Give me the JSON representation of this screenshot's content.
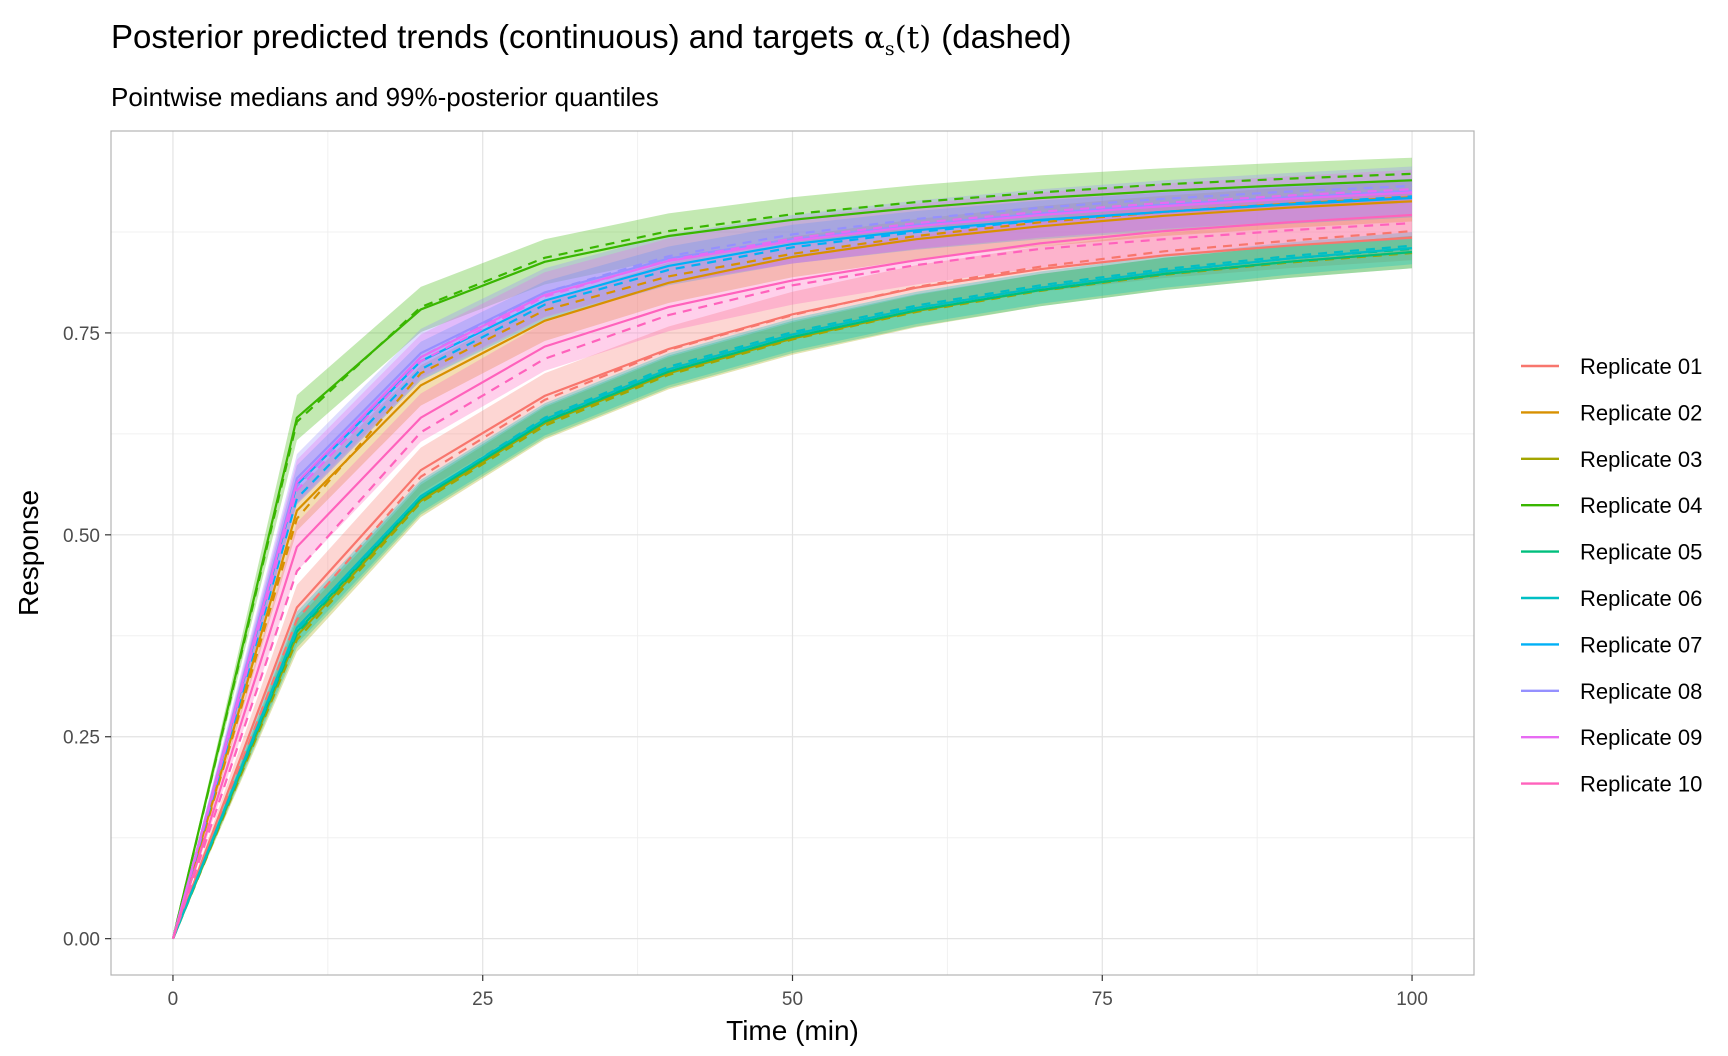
{
  "title_prefix": "Posterior predicted trends (continuous) and targets",
  "title_math_symbol": "α",
  "title_math_sub": "s",
  "title_math_arg": "(t)",
  "title_suffix": "(dashed)",
  "subtitle": "Pointwise medians and 99%-posterior quantiles",
  "chart_data": {
    "type": "line",
    "xlabel": "Time (min)",
    "ylabel": "Response",
    "xlim": [
      -5,
      105
    ],
    "ylim": [
      -0.045,
      1.0
    ],
    "x_ticks": [
      0,
      25,
      50,
      75,
      100
    ],
    "x_tick_labels": [
      "0",
      "25",
      "50",
      "75",
      "100"
    ],
    "y_ticks": [
      0,
      0.25,
      0.5,
      0.75
    ],
    "y_tick_labels": [
      "0.00",
      "0.25",
      "0.50",
      "0.75"
    ],
    "grid": true,
    "legend_position": "right",
    "x": [
      0,
      10,
      20,
      30,
      40,
      50,
      60,
      70,
      80,
      90,
      100
    ],
    "series": [
      {
        "name": "Replicate 01",
        "color": "#F8766D",
        "median": [
          0,
          0.41,
          0.58,
          0.672,
          0.73,
          0.773,
          0.806,
          0.829,
          0.846,
          0.858,
          0.868
        ],
        "target": [
          0,
          0.395,
          0.572,
          0.667,
          0.729,
          0.772,
          0.807,
          0.832,
          0.851,
          0.864,
          0.876
        ],
        "band": 0.028
      },
      {
        "name": "Replicate 02",
        "color": "#D89000",
        "median": [
          0,
          0.53,
          0.685,
          0.765,
          0.812,
          0.844,
          0.866,
          0.882,
          0.895,
          0.905,
          0.913
        ],
        "target": [
          0,
          0.52,
          0.7,
          0.778,
          0.82,
          0.848,
          0.87,
          0.887,
          0.9,
          0.91,
          0.918
        ],
        "band": 0.025
      },
      {
        "name": "Replicate 03",
        "color": "#A3A500",
        "median": [
          0,
          0.375,
          0.542,
          0.638,
          0.7,
          0.743,
          0.777,
          0.803,
          0.823,
          0.838,
          0.85
        ],
        "target": [
          0,
          0.37,
          0.54,
          0.635,
          0.698,
          0.742,
          0.776,
          0.802,
          0.822,
          0.837,
          0.849
        ],
        "band": 0.02
      },
      {
        "name": "Replicate 04",
        "color": "#39B600",
        "median": [
          0,
          0.645,
          0.779,
          0.838,
          0.87,
          0.89,
          0.905,
          0.917,
          0.926,
          0.933,
          0.939
        ],
        "target": [
          0,
          0.64,
          0.782,
          0.843,
          0.876,
          0.897,
          0.912,
          0.924,
          0.934,
          0.941,
          0.947
        ],
        "band": 0.028
      },
      {
        "name": "Replicate 05",
        "color": "#00BF7D",
        "median": [
          0,
          0.38,
          0.545,
          0.64,
          0.702,
          0.745,
          0.778,
          0.803,
          0.823,
          0.838,
          0.85
        ],
        "target": [
          0,
          0.378,
          0.545,
          0.642,
          0.705,
          0.748,
          0.781,
          0.806,
          0.826,
          0.842,
          0.854
        ],
        "band": 0.02
      },
      {
        "name": "Replicate 06",
        "color": "#00BFC4",
        "median": [
          0,
          0.385,
          0.548,
          0.643,
          0.705,
          0.748,
          0.781,
          0.806,
          0.826,
          0.842,
          0.855
        ],
        "target": [
          0,
          0.382,
          0.547,
          0.645,
          0.708,
          0.751,
          0.784,
          0.809,
          0.829,
          0.845,
          0.858
        ],
        "band": 0.02
      },
      {
        "name": "Replicate 07",
        "color": "#00B0F6",
        "median": [
          0,
          0.562,
          0.715,
          0.79,
          0.833,
          0.86,
          0.877,
          0.89,
          0.9,
          0.909,
          0.917
        ],
        "target": [
          0,
          0.545,
          0.705,
          0.785,
          0.828,
          0.856,
          0.875,
          0.889,
          0.9,
          0.91,
          0.919
        ],
        "band": 0.024
      },
      {
        "name": "Replicate 08",
        "color": "#9590FF",
        "median": [
          0,
          0.57,
          0.725,
          0.8,
          0.842,
          0.866,
          0.884,
          0.898,
          0.909,
          0.918,
          0.926
        ],
        "target": [
          0,
          0.56,
          0.72,
          0.8,
          0.845,
          0.872,
          0.891,
          0.905,
          0.916,
          0.925,
          0.932
        ],
        "band": 0.03
      },
      {
        "name": "Replicate 09",
        "color": "#E76BF3",
        "median": [
          0,
          0.565,
          0.72,
          0.797,
          0.839,
          0.864,
          0.882,
          0.896,
          0.907,
          0.916,
          0.924
        ],
        "target": [
          0,
          0.555,
          0.715,
          0.795,
          0.84,
          0.867,
          0.886,
          0.9,
          0.911,
          0.92,
          0.928
        ],
        "band": 0.028
      },
      {
        "name": "Replicate 10",
        "color": "#FF62BC",
        "median": [
          0,
          0.485,
          0.645,
          0.733,
          0.782,
          0.815,
          0.84,
          0.861,
          0.876,
          0.887,
          0.896
        ],
        "target": [
          0,
          0.455,
          0.627,
          0.718,
          0.772,
          0.809,
          0.834,
          0.854,
          0.866,
          0.877,
          0.886
        ],
        "band": 0.03
      }
    ]
  }
}
